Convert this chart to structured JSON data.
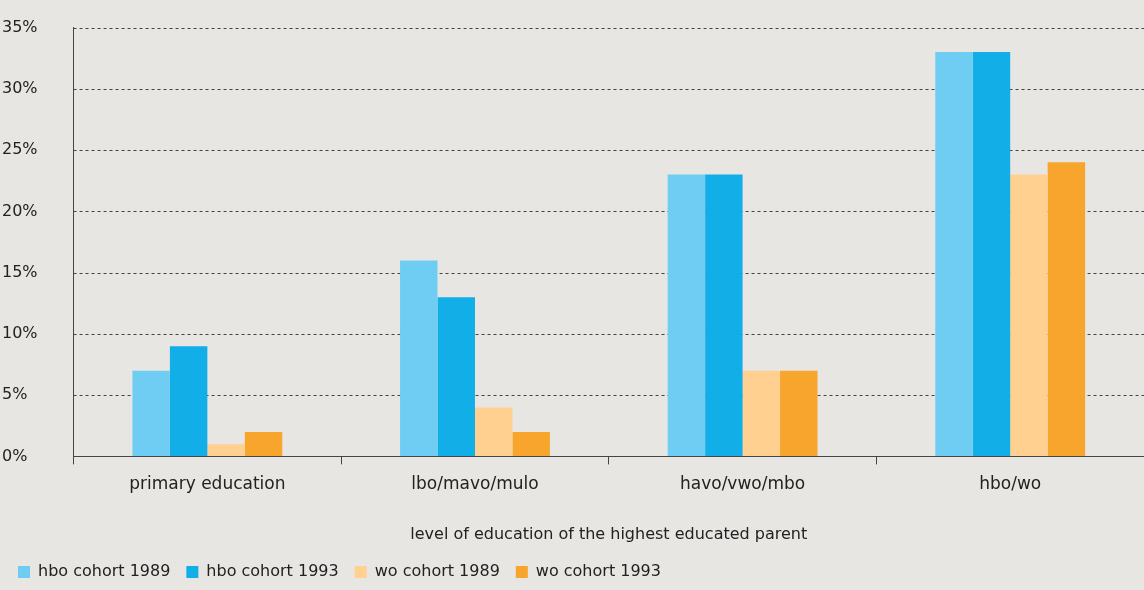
{
  "chart_data": {
    "type": "bar",
    "xlabel": "level of education of the highest educated parent",
    "categories": [
      "primary education",
      "lbo/mavo/mulo",
      "havo/vwo/mbo",
      "hbo/wo"
    ],
    "series": [
      {
        "name": "hbo cohort 1989",
        "color": "#6fcdf3",
        "values": [
          7,
          16,
          23,
          33
        ]
      },
      {
        "name": "hbo cohort 1993",
        "color": "#12aee8",
        "values": [
          9,
          13,
          23,
          33
        ]
      },
      {
        "name": "wo cohort 1989",
        "color": "#ffd08f",
        "values": [
          1,
          4,
          7,
          23
        ]
      },
      {
        "name": "wo cohort 1993",
        "color": "#f7a52c",
        "values": [
          2,
          2,
          7,
          24
        ]
      }
    ],
    "ylim": [
      0,
      35
    ],
    "yticks": [
      {
        "value": 0,
        "label": "0%"
      },
      {
        "value": 5,
        "label": "5%"
      },
      {
        "value": 10,
        "label": "10%"
      },
      {
        "value": 15,
        "label": "15%"
      },
      {
        "value": 20,
        "label": "20%"
      },
      {
        "value": 25,
        "label": "25%"
      },
      {
        "value": 30,
        "label": "30%"
      },
      {
        "value": 35,
        "label": "35%"
      }
    ],
    "grid": "y",
    "legend": "bottom left"
  }
}
